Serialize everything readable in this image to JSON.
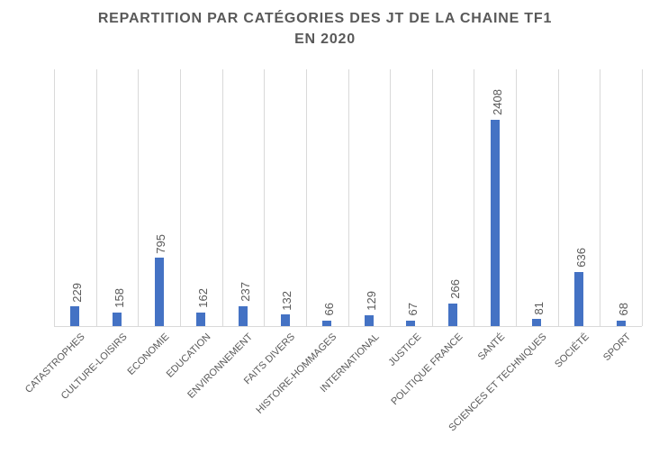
{
  "chart_data": {
    "type": "bar",
    "title": "REPARTITION PAR CATÉGORIES DES JT DE LA CHAINE TF1 EN 2020",
    "title_lines": [
      "REPARTITION PAR CATÉGORIES DES JT DE LA CHAINE TF1",
      "EN 2020"
    ],
    "categories": [
      "CATASTROPHES",
      "CULTURE-LOISIRS",
      "ECONOMIE",
      "EDUCATION",
      "ENVIRONNEMENT",
      "FAITS DIVERS",
      "HISTOIRE-HOMMAGES",
      "INTERNATIONAL",
      "JUSTICE",
      "POLITIQUE FRANCE",
      "SANTÉ",
      "SCIENCES ET TECHNIQUES",
      "SOCIÉTÉ",
      "SPORT"
    ],
    "values": [
      229,
      158,
      795,
      162,
      237,
      132,
      66,
      129,
      67,
      266,
      2408,
      81,
      636,
      68
    ],
    "xlabel": "",
    "ylabel": "",
    "ylim": [
      0,
      3000
    ],
    "y_axis_labels": "none",
    "legend": "none",
    "gridlines": "vertical-only",
    "data_labels": "rotated-90-above-bars",
    "category_labels": "rotated-45",
    "colors": {
      "bar": "#4472C4",
      "text": "#595959",
      "gridline": "#D9D9D9",
      "background": "#FFFFFF"
    }
  }
}
